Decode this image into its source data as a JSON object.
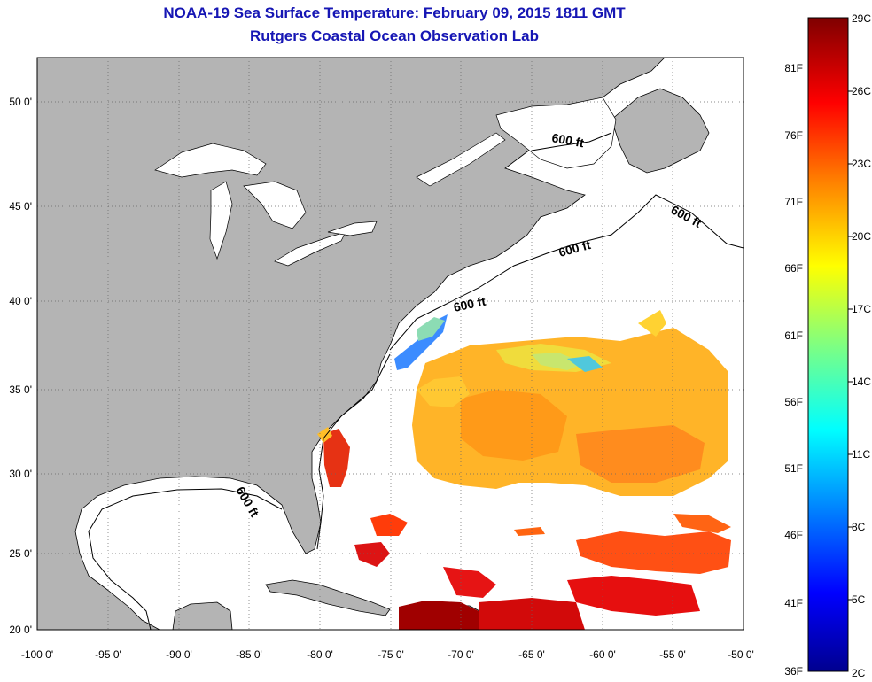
{
  "header": {
    "title": "NOAA-19 Sea Surface Temperature:  February 09, 2015 1811 GMT",
    "subtitle": "Rutgers Coastal Ocean Observation Lab"
  },
  "map": {
    "lon_range": [
      -100,
      -50
    ],
    "lat_range": [
      20,
      52.5
    ],
    "lon_ticks": [
      "-100 0'",
      "-95 0'",
      "-90 0'",
      "-85 0'",
      "-80 0'",
      "-75 0'",
      "-70 0'",
      "-65 0'",
      "-60 0'",
      "-55 0'",
      "-50 0'"
    ],
    "lat_ticks": [
      "50 0'",
      "45 0'",
      "40 0'",
      "35 0'",
      "30 0'",
      "25 0'",
      "20 0'"
    ],
    "grid": "dotted",
    "contour_labels": [
      "600 ft",
      "600 ft",
      "600 ft",
      "600 ft",
      "600 ft"
    ],
    "land_color": "#b4b4b4",
    "no_data_color": "#ffffff"
  },
  "colorbar": {
    "celsius_labels": [
      "29C",
      "26C",
      "23C",
      "20C",
      "17C",
      "14C",
      "11C",
      "8C",
      "5C",
      "2C"
    ],
    "fahrenheit_labels": [
      "81F",
      "76F",
      "71F",
      "66F",
      "61F",
      "56F",
      "51F",
      "46F",
      "41F",
      "36F"
    ],
    "colors": [
      "#7f0000",
      "#ff0000",
      "#ff8000",
      "#ffff00",
      "#80ff80",
      "#00ffff",
      "#0080ff",
      "#0000ff",
      "#00008f"
    ]
  }
}
